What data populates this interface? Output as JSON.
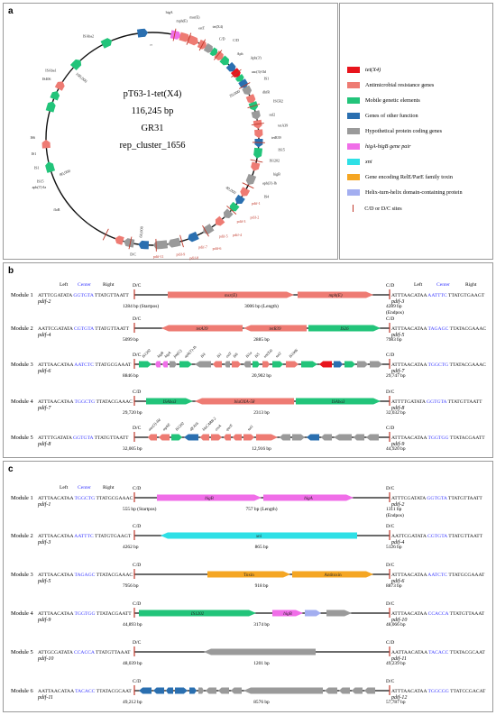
{
  "panels": {
    "a": "a",
    "b": "b",
    "c": "c"
  },
  "plasmid": {
    "name": "pT63-1-tet(X4)",
    "size": "116,245 bp",
    "line3": "GR31",
    "line4": "rep_cluster_1656",
    "scale": [
      "1",
      "20,000",
      "40,000",
      "60,000",
      "80,000",
      "100,000"
    ],
    "left_labels": [
      "IS6",
      "IS1",
      "IS1",
      "IS15",
      "floR",
      "ISAba1",
      "aph(3')-Ia",
      "IS406",
      "ISAba2"
    ],
    "right_labels": [
      "higA",
      "mph(E)",
      "msr(E)",
      "estT",
      "tet(X4)",
      "C/D",
      "C/D",
      "Aph",
      "Aph(3')",
      "aac(3)-IId",
      "IS1",
      "dhfR",
      "ISCR2",
      "sul2",
      "tetA39",
      "tetR39",
      "IS15",
      "IS1202",
      "higB",
      "aph(3')-Ib",
      "IS4",
      "pdif-1",
      "pdif-2",
      "pdif-3",
      "pdif-4",
      "pdif-5",
      "pdif-6",
      "pdif-7",
      "pdif-8",
      "pdif-9",
      "pdif-10",
      "pdif-11",
      "pdif-12",
      "D/C"
    ]
  },
  "legend": [
    {
      "label": "tet(X4)",
      "color": "#e8141c",
      "italic": true
    },
    {
      "label": "Antimicrobial resistance genes",
      "color": "#ee7b73",
      "italic": false
    },
    {
      "label": "Mobile genetic elements",
      "color": "#22c47a",
      "italic": false
    },
    {
      "label": "Genes of other function",
      "color": "#2a6fb0",
      "italic": false
    },
    {
      "label": "Hypothetical protein coding genes",
      "color": "#9a9a9a",
      "italic": false
    },
    {
      "label": "higA-higB gene pair",
      "color": "#f06ee8",
      "italic": true
    },
    {
      "label": "xni",
      "color": "#2ee0e6",
      "italic": true
    },
    {
      "label": "Gene encoding RelE/ParE family toxin",
      "color": "#f5a623",
      "italic": false
    },
    {
      "label": "Helix-turn-helix domain-containing protein",
      "color": "#a3aef0",
      "italic": false
    },
    {
      "label": "C/D or D/C sites",
      "color": "#c0392b",
      "italic": false
    }
  ],
  "b_rows": [
    {
      "module": "Module 1",
      "left_seq": [
        "ATTTCGATATA ",
        "GGTGTA",
        " TTATGTTAATT"
      ],
      "left_pdif": "pdif-2",
      "right_seq": [
        "ATTTAACATAA ",
        "AATTTC",
        " TTATGTGAAGT"
      ],
      "right_pdif": "pdif-3",
      "left_site": "D/C",
      "right_site": "C/D",
      "pos_left": "1284 bp (Startpos)",
      "pos_mid": "3006 bp (Length)",
      "pos_right": "4289 bp",
      "pos_right2": "(Endpos)",
      "header": {
        "left": "Left",
        "center": "Center",
        "right": "Right"
      },
      "header_right": {
        "left": "Left",
        "center": "Center",
        "right": "Right"
      },
      "genes": [
        "msr(E)",
        "mph(E)"
      ]
    },
    {
      "module": "Module 2",
      "left_seq": [
        "AATTCGATATA ",
        "CGTGTA",
        " TTATGTTAATT"
      ],
      "left_pdif": "pdif-4",
      "right_seq": [
        "ATTTAACATAA ",
        "TAGAGC",
        " TTATACGAAAC"
      ],
      "right_pdif": "pdif-5",
      "left_site": "D/C",
      "right_site": "C/D",
      "pos_left": "5099 bp",
      "pos_mid": "2885 bp",
      "pos_right": "7983 bp",
      "genes": [
        "tetA39",
        "tetR39",
        "IS26"
      ]
    },
    {
      "module": "Module 3",
      "left_seq": [
        "ATTTAACATAA ",
        "AATCTC",
        " TTATGCGAAAT"
      ],
      "left_pdif": "pdif-6",
      "right_seq": [
        "ATTTAACATAA ",
        "TGGCTG",
        " TTATACGAAAC"
      ],
      "right_pdif": "pdif-7",
      "left_site": "D/C",
      "right_site": "C/D",
      "pos_left": "8846 bp",
      "pos_mid": "20,902 bp",
      "pos_right": "29,747 bp",
      "genes": [
        "IS1202",
        "higB",
        "higA",
        "fmt(G)",
        "aph(3')-Ib",
        "IS4",
        "IS1",
        "estT",
        "IS6",
        "IS1a",
        "IS5",
        "tet(X4)",
        "sul2",
        "IS1006"
      ]
    },
    {
      "module": "Module 4",
      "left_seq": [
        "ATTTAACATAA ",
        "TGGCTG",
        " TTATACGAAAC"
      ],
      "left_pdif": "pdif-7",
      "right_seq": [
        "ATTTTGATATA ",
        "GGTGTA",
        " TTATGTTAATT"
      ],
      "right_pdif": "pdif-8",
      "left_site": "C/D",
      "right_site": "D/C",
      "pos_left": "29,720 bp",
      "pos_mid": "2313 bp",
      "pos_right": "32,032 bp",
      "genes": [
        "ISAba3",
        "blaOXA-58",
        "ISAba3"
      ]
    },
    {
      "module": "Module 5",
      "left_seq": [
        "ATTTTGATATA ",
        "GGTGTA",
        " TTATGTTAATT"
      ],
      "left_pdif": "pdif-8",
      "right_seq": [
        "ATTTAACATAA ",
        "TGGTGG",
        " TTATACGAATT"
      ],
      "right_pdif": "pdif-9",
      "left_site": "D/C",
      "right_site": "C/D",
      "pos_left": "32,005 bp",
      "pos_mid": "12,916 bp",
      "pos_right": "44,920 bp",
      "genes": [
        "aac(3)-IId",
        "mphE",
        "IS1202",
        "dfrA16",
        "blaCARB-2",
        "ereA",
        "qacE",
        "sul1"
      ]
    }
  ],
  "c_rows": [
    {
      "module": "Module 1",
      "left_seq": [
        "ATTTAACATAA ",
        "TGGCTG",
        " TTATGCGAAAC"
      ],
      "left_pdif": "pdif-1",
      "right_seq": [
        "ATTTCGATATA ",
        "GGTGTA",
        " TTATGTTAATT"
      ],
      "right_pdif": "pdif-2",
      "left_site": "C/D",
      "right_site": "D/C",
      "pos_left": "555 bp (Startpos)",
      "pos_mid": "757 bp (Length)",
      "pos_right": "1311 bp",
      "pos_right2": "(Endpos)",
      "header": {
        "left": "Left",
        "center": "Center",
        "right": "Right"
      },
      "genes": [
        "higB",
        "higA"
      ]
    },
    {
      "module": "Module 2",
      "left_seq": [
        "ATTTAACATAA ",
        "AATTTC",
        " TTATGTGAAGT"
      ],
      "left_pdif": "pdif-3",
      "right_seq": [
        "AATTCGATATA ",
        "CGTGTA",
        " TTATGTTAATT"
      ],
      "right_pdif": "pdif-4",
      "left_site": "C/D",
      "right_site": "D/C",
      "pos_left": "4262 bp",
      "pos_mid": "865 bp",
      "pos_right": "5126 bp",
      "genes": [
        "xni"
      ]
    },
    {
      "module": "Module 3",
      "left_seq": [
        "ATTTAACATAA ",
        "TAGAGC",
        " TTATACGAAAC"
      ],
      "left_pdif": "pdif-5",
      "right_seq": [
        "ATTTAACATAA ",
        "AATCTC",
        " TTATGCGAAAT"
      ],
      "right_pdif": "pdif-6",
      "left_site": "C/D",
      "right_site": "D/C",
      "pos_left": "7956 bp",
      "pos_mid": "918 bp",
      "pos_right": "8873 bp",
      "genes": [
        "Toxin",
        "Antitoxin"
      ]
    },
    {
      "module": "Module 4",
      "left_seq": [
        "ATTTAACATAA ",
        "TGGTGG",
        " TTATACGAATT"
      ],
      "left_pdif": "pdif-9",
      "right_seq": [
        "ATTTAACATAA ",
        "CCACCA",
        " TTATGTTAAAT"
      ],
      "right_pdif": "pdif-10",
      "left_site": "C/D",
      "right_site": "D/C",
      "pos_left": "44,893 bp",
      "pos_mid": "3174 bp",
      "pos_right": "48,066 bp",
      "genes": [
        "IS1202",
        "higB"
      ]
    },
    {
      "module": "Module 5",
      "left_seq": [
        "ATTGCGATATA ",
        "CCACCA",
        " TTATGTTAAAT"
      ],
      "left_pdif": "pdif-10",
      "right_seq": [
        "AATTAACATAA ",
        "TACACC",
        " TTATACGCAAT"
      ],
      "right_pdif": "pdif-11",
      "left_site": "D/C",
      "right_site": "C/D",
      "pos_left": "48,039 bp",
      "pos_mid": "1201 bp",
      "pos_right": "49,239 bp",
      "genes": []
    },
    {
      "module": "Module 6",
      "left_seq": [
        "AATTAACATAA ",
        "TACACC",
        " TTATACGCAAT"
      ],
      "left_pdif": "pdif-11",
      "right_seq": [
        "ATTTAACATAA ",
        "TGGCGG",
        " TTATCCGACAT"
      ],
      "right_pdif": "pdif-12",
      "left_site": "C/D",
      "right_site": "D/C",
      "pos_left": "49,212 bp",
      "pos_mid": "8576 bp",
      "pos_right": "57,787 bp",
      "genes": []
    }
  ],
  "colors": {
    "tet": "#e8141c",
    "arg": "#ee7b73",
    "mge": "#22c47a",
    "other": "#2a6fb0",
    "hyp": "#9a9a9a",
    "hig": "#f06ee8",
    "xni": "#2ee0e6",
    "toxin": "#f5a623",
    "hth": "#a3aef0",
    "site": "#c0392b",
    "center": "#3a3aff"
  }
}
